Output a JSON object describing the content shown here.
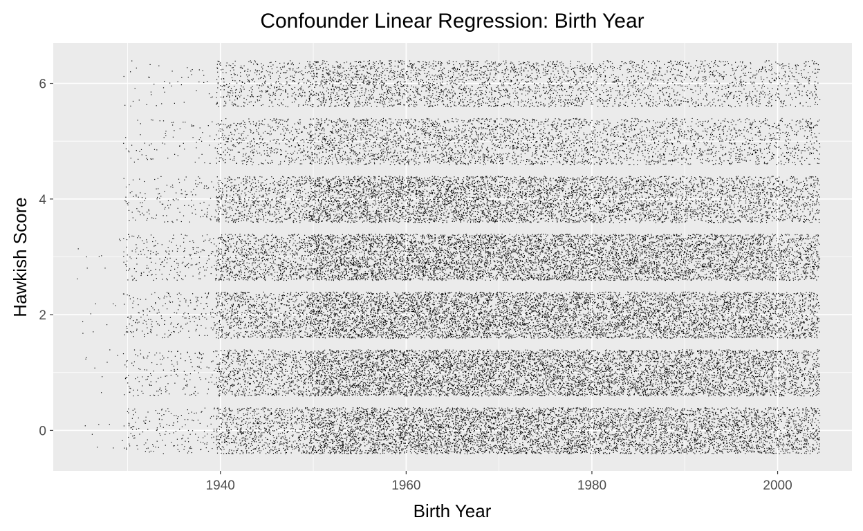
{
  "chart_data": {
    "type": "scatter",
    "title": "Confounder Linear Regression: Birth Year",
    "xlabel": "Birth Year",
    "ylabel": "Hawkish Score",
    "xlim": [
      1922,
      2008
    ],
    "ylim": [
      -0.7,
      6.7
    ],
    "x_ticks": [
      1940,
      1960,
      1980,
      2000
    ],
    "x_tick_labels": [
      "1940",
      "1960",
      "1980",
      "2000"
    ],
    "y_ticks": [
      0,
      2,
      4,
      6
    ],
    "y_tick_labels": [
      "0",
      "2",
      "4",
      "6"
    ],
    "grid": true,
    "legend": "none",
    "colors": {
      "panel_background": "#ebebeb",
      "grid_major": "#ffffff",
      "point": "#000000",
      "tick_label": "#4d4d4d"
    },
    "jitter": {
      "x": 0.5,
      "y": 0.4
    },
    "y_levels": [
      0,
      1,
      2,
      3,
      4,
      5,
      6
    ],
    "birth_year_range": [
      1925,
      2004
    ],
    "series": [
      {
        "y": 0,
        "density_by_decade": {
          "1920s": 0.01,
          "1930s": 0.12,
          "1940s": 0.55,
          "1950s": 0.95,
          "1960s": 1.0,
          "1970s": 0.95,
          "1980s": 0.85,
          "1990s": 0.8,
          "2000s": 0.65
        }
      },
      {
        "y": 1,
        "density_by_decade": {
          "1920s": 0.01,
          "1930s": 0.12,
          "1940s": 0.55,
          "1950s": 1.0,
          "1960s": 1.0,
          "1970s": 0.95,
          "1980s": 0.9,
          "1990s": 0.85,
          "2000s": 0.65
        }
      },
      {
        "y": 2,
        "density_by_decade": {
          "1920s": 0.01,
          "1930s": 0.15,
          "1940s": 0.6,
          "1950s": 1.0,
          "1960s": 1.0,
          "1970s": 0.95,
          "1980s": 0.9,
          "1990s": 0.85,
          "2000s": 0.65
        }
      },
      {
        "y": 3,
        "density_by_decade": {
          "1920s": 0.01,
          "1930s": 0.15,
          "1940s": 0.6,
          "1950s": 1.0,
          "1960s": 1.0,
          "1970s": 0.95,
          "1980s": 0.9,
          "1990s": 0.85,
          "2000s": 0.65
        }
      },
      {
        "y": 4,
        "density_by_decade": {
          "1920s": 0.0,
          "1930s": 0.1,
          "1940s": 0.5,
          "1950s": 0.9,
          "1960s": 0.9,
          "1970s": 0.8,
          "1980s": 0.7,
          "1990s": 0.6,
          "2000s": 0.5
        }
      },
      {
        "y": 5,
        "density_by_decade": {
          "1920s": 0.0,
          "1930s": 0.05,
          "1940s": 0.3,
          "1950s": 0.55,
          "1960s": 0.55,
          "1970s": 0.5,
          "1980s": 0.4,
          "1990s": 0.35,
          "2000s": 0.3
        }
      },
      {
        "y": 6,
        "density_by_decade": {
          "1920s": 0.0,
          "1930s": 0.03,
          "1940s": 0.3,
          "1950s": 0.55,
          "1960s": 0.5,
          "1970s": 0.45,
          "1980s": 0.35,
          "1990s": 0.3,
          "2000s": 0.25
        }
      }
    ]
  }
}
